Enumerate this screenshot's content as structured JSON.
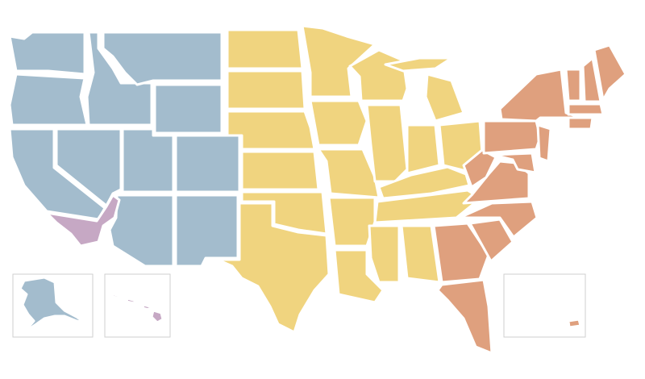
{
  "colors": {
    "west": "#a3bccd",
    "central": "#f0d47f",
    "east": "#dfa07e",
    "pacific": "#c6a8c4"
  },
  "states": {
    "WA": "west",
    "OR": "west",
    "ID": "west",
    "MT": "west",
    "WY": "west",
    "NV": "west",
    "CA": "west",
    "UT": "west",
    "CO": "west",
    "AZ": "west",
    "NM": "west",
    "AK": "west",
    "SOCAL": "pacific",
    "HI": "pacific",
    "ND": "central",
    "SD": "central",
    "NE": "central",
    "KS": "central",
    "OK": "central",
    "TX": "central",
    "MN": "central",
    "IA": "central",
    "MO": "central",
    "AR": "central",
    "LA": "central",
    "WI": "central",
    "IL": "central",
    "MI": "central",
    "MIU": "central",
    "IN": "central",
    "OH": "central",
    "KY": "central",
    "TN": "central",
    "MS": "central",
    "AL": "central",
    "GA": "east",
    "FL": "east",
    "SC": "east",
    "NC": "east",
    "VA": "east",
    "WV": "east",
    "PA": "east",
    "NY": "east",
    "MD": "east",
    "NJ": "east",
    "VT": "east",
    "NH": "east",
    "ME": "east",
    "MA": "east",
    "CT": "east",
    "PR": "east"
  }
}
